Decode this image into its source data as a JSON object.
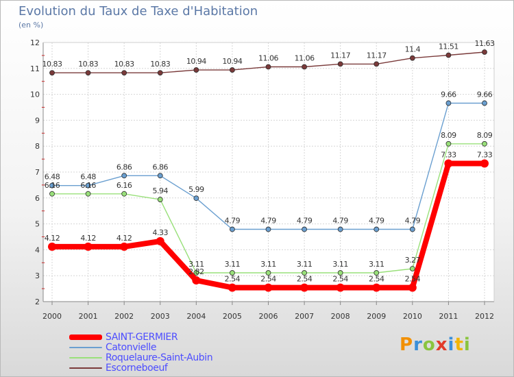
{
  "header": {
    "title": "Evolution du Taux de Taxe d'Habitation",
    "unit": "(en %)"
  },
  "logo": {
    "letters": [
      "P",
      "r",
      "o",
      "x",
      "i",
      "t",
      "i"
    ],
    "colors": [
      "#f29000",
      "#3a8fd9",
      "#8ac43f",
      "#e23a2a",
      "#3a8fd9",
      "#f2b400",
      "#8ac43f"
    ]
  },
  "chart_data": {
    "type": "line",
    "x": [
      "2000",
      "2001",
      "2002",
      "2003",
      "2004",
      "2005",
      "2006",
      "2007",
      "2008",
      "2009",
      "2010",
      "2011",
      "2012"
    ],
    "ylim": [
      2,
      12
    ],
    "yticks": [
      "2",
      "3",
      "4",
      "5",
      "6",
      "7",
      "8",
      "9",
      "10",
      "11",
      "12"
    ],
    "grid": true,
    "legend_position": "bottom-left",
    "series": [
      {
        "name": "SAINT-GERMIER",
        "color": "#ff0000",
        "values": [
          4.12,
          4.12,
          4.12,
          4.33,
          2.82,
          2.54,
          2.54,
          2.54,
          2.54,
          2.54,
          2.54,
          7.33,
          7.33
        ],
        "labels": [
          "4.12",
          "4.12",
          "4.12",
          "4.33",
          "2.82",
          "2.54",
          "2.54",
          "2.54",
          "2.54",
          "2.54",
          "2.54",
          "7.33",
          "7.33"
        ]
      },
      {
        "name": "Catonvielle",
        "color": "#6a9fd0",
        "values": [
          6.48,
          6.48,
          6.86,
          6.86,
          5.99,
          4.79,
          4.79,
          4.79,
          4.79,
          4.79,
          4.79,
          9.66,
          9.66
        ],
        "labels": [
          "6.48",
          "6.48",
          "6.86",
          "6.86",
          "5.99",
          "4.79",
          "4.79",
          "4.79",
          "4.79",
          "4.79",
          "4.79",
          "9.66",
          "9.66"
        ]
      },
      {
        "name": "Roquelaure-Saint-Aubin",
        "color": "#99e07a",
        "values": [
          6.16,
          6.16,
          6.16,
          5.94,
          3.11,
          3.11,
          3.11,
          3.11,
          3.11,
          3.11,
          3.27,
          8.09,
          8.09
        ],
        "labels": [
          "6.16",
          "6.16",
          "6.16",
          "5.94",
          "3.11",
          "3.11",
          "3.11",
          "3.11",
          "3.11",
          "3.11",
          "3.27",
          "8.09",
          "8.09"
        ]
      },
      {
        "name": "Escorneboeuf",
        "color": "#7a3a3a",
        "values": [
          10.83,
          10.83,
          10.83,
          10.83,
          10.94,
          10.94,
          11.06,
          11.06,
          11.17,
          11.17,
          11.4,
          11.51,
          11.63
        ],
        "labels": [
          "10.83",
          "10.83",
          "10.83",
          "10.83",
          "10.94",
          "10.94",
          "11.06",
          "11.06",
          "11.17",
          "11.17",
          "11.4",
          "11.51",
          "11.63"
        ]
      }
    ]
  }
}
